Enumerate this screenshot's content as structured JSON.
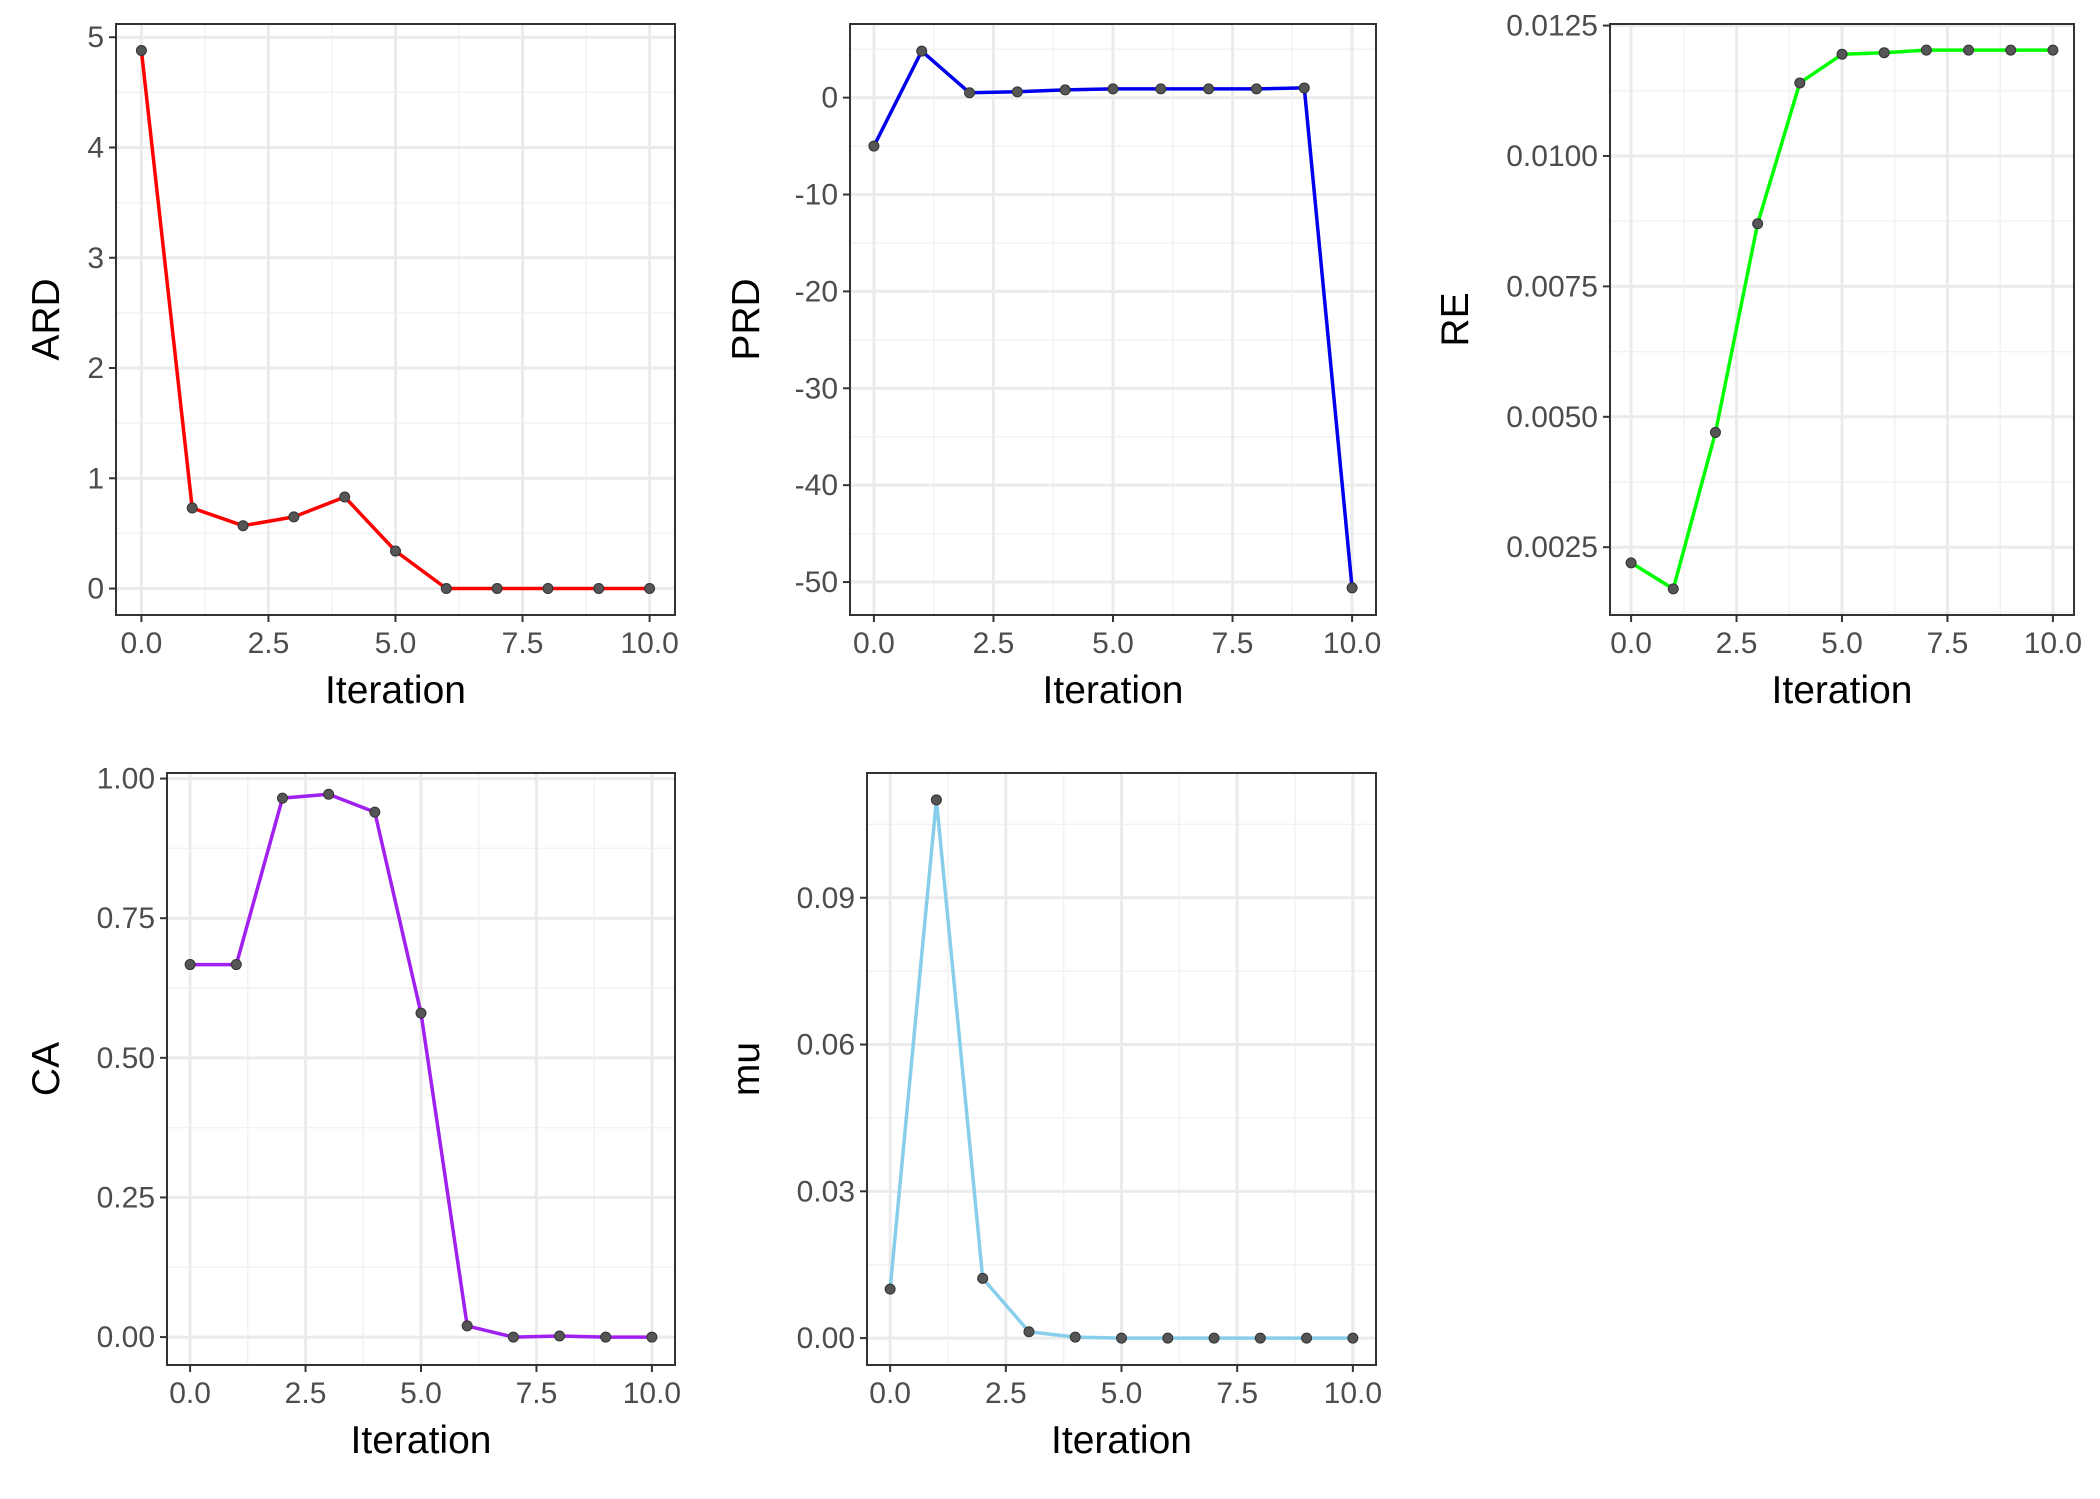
{
  "chart_data": [
    {
      "type": "line",
      "xlabel": "Iteration",
      "ylabel": "ARD",
      "color": "#ff0000",
      "x": [
        0,
        1,
        2,
        3,
        4,
        5,
        6,
        7,
        8,
        9,
        10
      ],
      "values": [
        4.88,
        0.73,
        0.57,
        0.65,
        0.83,
        0.34,
        0.0,
        0.0,
        0.0,
        0.0,
        0.0
      ],
      "xlim": [
        -0.5,
        10.5
      ],
      "ylim": [
        -0.24,
        5.12
      ],
      "xticks": [
        0,
        2.5,
        5,
        7.5,
        10
      ],
      "xtick_labels": [
        "0.0",
        "2.5",
        "5.0",
        "7.5",
        "10.0"
      ],
      "yticks": [
        0,
        1,
        2,
        3,
        4,
        5
      ],
      "ytick_labels": [
        "0",
        "1",
        "2",
        "3",
        "4",
        "5"
      ],
      "grid": true
    },
    {
      "type": "line",
      "xlabel": "Iteration",
      "ylabel": "PRD",
      "color": "#0000ee",
      "x": [
        0,
        1,
        2,
        3,
        4,
        5,
        6,
        7,
        8,
        9,
        10
      ],
      "values": [
        -5.0,
        4.8,
        0.5,
        0.6,
        0.8,
        0.9,
        0.9,
        0.9,
        0.9,
        1.0,
        -50.6
      ],
      "xlim": [
        -0.5,
        10.5
      ],
      "ylim": [
        -53.4,
        7.6
      ],
      "xticks": [
        0,
        2.5,
        5,
        7.5,
        10
      ],
      "xtick_labels": [
        "0.0",
        "2.5",
        "5.0",
        "7.5",
        "10.0"
      ],
      "yticks": [
        -50,
        -40,
        -30,
        -20,
        -10,
        0
      ],
      "ytick_labels": [
        "-50",
        "-40",
        "-30",
        "-20",
        "-10",
        "0"
      ],
      "grid": true
    },
    {
      "type": "line",
      "xlabel": "Iteration",
      "ylabel": "RE",
      "color": "#00ff00",
      "x": [
        0,
        1,
        2,
        3,
        4,
        5,
        6,
        7,
        8,
        9,
        10
      ],
      "values": [
        0.0022,
        0.0017,
        0.0047,
        0.0087,
        0.0114,
        0.01195,
        0.01198,
        0.01203,
        0.01203,
        0.01203,
        0.01203
      ],
      "xlim": [
        -0.5,
        10.5
      ],
      "ylim": [
        0.0012,
        0.01253
      ],
      "xticks": [
        0,
        2.5,
        5,
        7.5,
        10
      ],
      "xtick_labels": [
        "0.0",
        "2.5",
        "5.0",
        "7.5",
        "10.0"
      ],
      "yticks": [
        0.0025,
        0.005,
        0.0075,
        0.01,
        0.0125
      ],
      "ytick_labels": [
        "0.0025",
        "0.0050",
        "0.0075",
        "0.0100",
        "0.0125"
      ],
      "grid": true
    },
    {
      "type": "line",
      "xlabel": "Iteration",
      "ylabel": "CA",
      "color": "#a020f0",
      "x": [
        0,
        1,
        2,
        3,
        4,
        5,
        6,
        7,
        8,
        9,
        10
      ],
      "values": [
        0.667,
        0.667,
        0.965,
        0.972,
        0.94,
        0.58,
        0.02,
        0.0,
        0.002,
        0.0,
        0.0
      ],
      "xlim": [
        -0.5,
        10.5
      ],
      "ylim": [
        -0.05,
        1.01
      ],
      "xticks": [
        0,
        2.5,
        5,
        7.5,
        10
      ],
      "xtick_labels": [
        "0.0",
        "2.5",
        "5.0",
        "7.5",
        "10.0"
      ],
      "yticks": [
        0,
        0.25,
        0.5,
        0.75,
        1.0
      ],
      "ytick_labels": [
        "0.00",
        "0.25",
        "0.50",
        "0.75",
        "1.00"
      ],
      "grid": true
    },
    {
      "type": "line",
      "xlabel": "Iteration",
      "ylabel": "mu",
      "color": "#87ceeb",
      "x": [
        0,
        1,
        2,
        3,
        4,
        5,
        6,
        7,
        8,
        9,
        10
      ],
      "values": [
        0.01,
        0.11,
        0.0122,
        0.0013,
        0.0002,
        0.0,
        0.0,
        0.0,
        0.0,
        0.0,
        0.0
      ],
      "xlim": [
        -0.5,
        10.5
      ],
      "ylim": [
        -0.0055,
        0.1155
      ],
      "xticks": [
        0,
        2.5,
        5,
        7.5,
        10
      ],
      "xtick_labels": [
        "0.0",
        "2.5",
        "5.0",
        "7.5",
        "10.0"
      ],
      "yticks": [
        0,
        0.03,
        0.06,
        0.09
      ],
      "ytick_labels": [
        "0.00",
        "0.03",
        "0.06",
        "0.09"
      ],
      "grid": true
    }
  ]
}
